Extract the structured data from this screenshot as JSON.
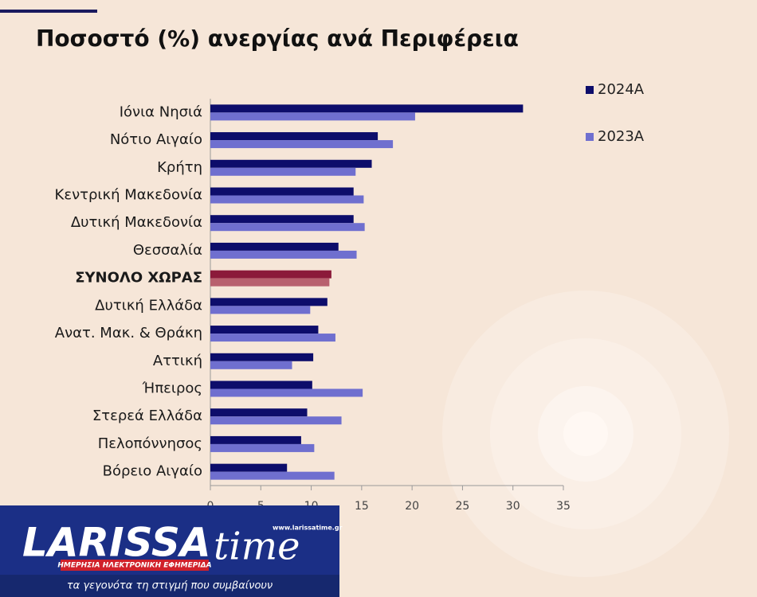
{
  "chart_data": {
    "type": "bar",
    "orientation": "horizontal",
    "title": "Ποσοστό (%) ανεργίας ανά Περιφέρεια",
    "categories": [
      "Ιόνια Νησιά",
      "Νότιο Αιγαίο",
      "Κρήτη",
      "Κεντρική Μακεδονία",
      "Δυτική Μακεδονία",
      "Θεσσαλία",
      "ΣΥΝΟΛΟ ΧΩΡΑΣ",
      "Δυτική Ελλάδα",
      "Ανατ. Μακ. & Θράκη",
      "Αττική",
      "Ήπειρος",
      "Στερεά Ελλάδα",
      "Πελοπόννησος",
      "Βόρειο Αιγαίο"
    ],
    "series": [
      {
        "name": "2024A",
        "color": "#0d0d6b",
        "values": [
          31.0,
          16.6,
          16.0,
          14.2,
          14.2,
          12.7,
          12.0,
          11.6,
          10.7,
          10.2,
          10.1,
          9.6,
          9.0,
          7.6
        ]
      },
      {
        "name": "2023A",
        "color": "#6f6fcf",
        "values": [
          20.3,
          18.1,
          14.4,
          15.2,
          15.3,
          14.5,
          11.8,
          9.9,
          12.4,
          8.1,
          15.1,
          13.0,
          10.3,
          12.3
        ]
      }
    ],
    "highlight": {
      "index": 6,
      "colors": [
        "#8b1a3a",
        "#b8606e"
      ]
    },
    "xlim": [
      0,
      35
    ],
    "xticks": [
      0,
      5,
      10,
      15,
      20,
      25,
      30,
      35
    ],
    "grid": false,
    "legend": "top-right"
  },
  "logo": {
    "name_main": "LARISSA",
    "name_accent": "time",
    "url": "www.larissatime.gr",
    "tagline": "ΗΜΕΡΗΣΙΑ ΗΛΕΚΤΡΟΝΙΚΗ ΕΦΗΜΕΡΙΔΑ",
    "slogan": "τα γεγονότα τη στιγμή που συμβαίνουν"
  }
}
